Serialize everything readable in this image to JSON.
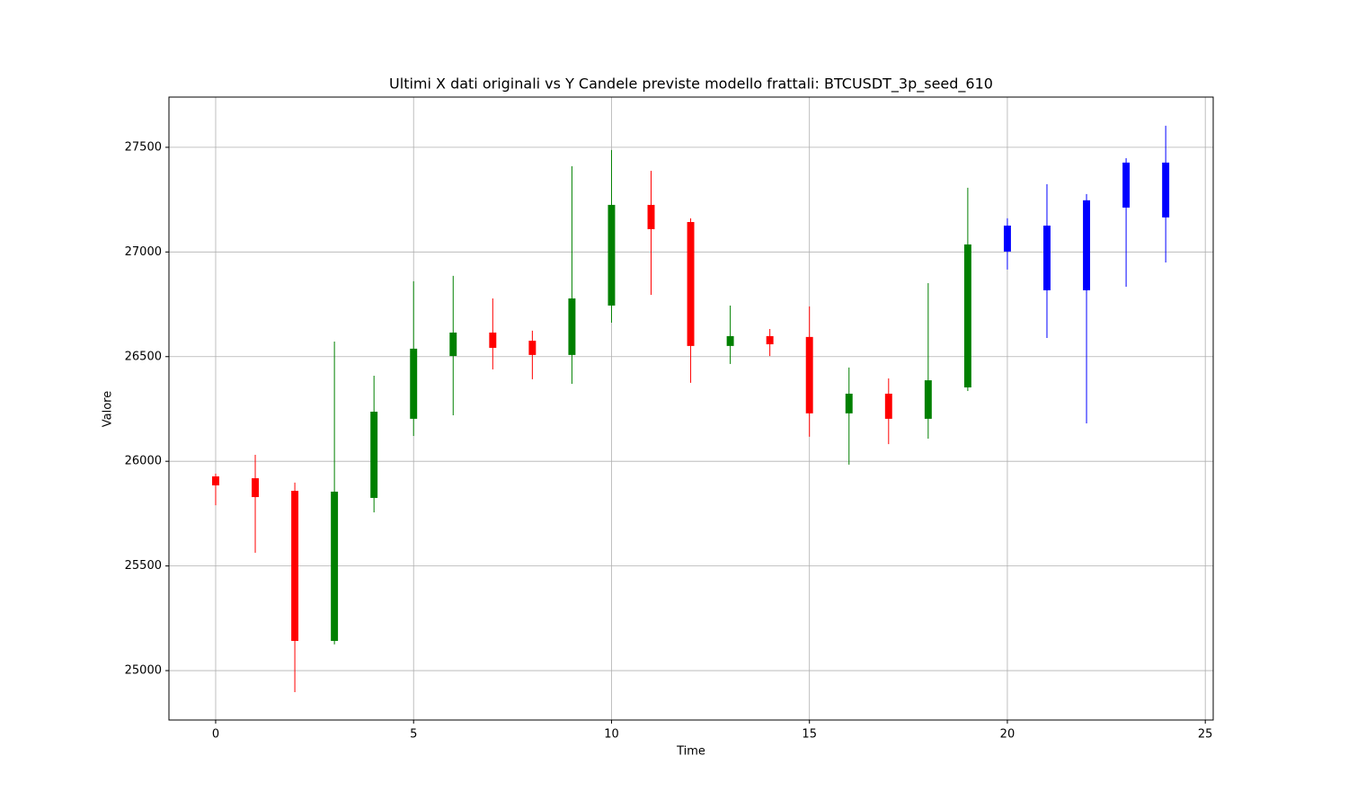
{
  "chart_data": {
    "type": "candlestick",
    "title": "Ultimi X dati originali vs Y Candele previste modello frattali: BTCUSDT_3p_seed_610",
    "x_label": "Time",
    "y_label": "Valore",
    "xlim": [
      -1.18,
      25.2
    ],
    "xticks": [
      0,
      5,
      10,
      15,
      20,
      25
    ],
    "ylim": [
      24764,
      27740
    ],
    "yticks": [
      25000,
      25500,
      26000,
      26500,
      27000,
      27500
    ],
    "grid": true,
    "series": [
      {
        "up_color": "green",
        "down_color": "red",
        "x": [
          0,
          1,
          2,
          3,
          4,
          5,
          6,
          7,
          8,
          9,
          10,
          11,
          12,
          13,
          14,
          15,
          16,
          17,
          18,
          19
        ],
        "open": [
          25928,
          25919,
          25859,
          25142,
          25825,
          26203,
          26503,
          26615,
          26576,
          26508,
          26744,
          27225,
          27143,
          26551,
          26598,
          26594,
          26229,
          26323,
          26203,
          26353
        ],
        "high": [
          25941,
          26031,
          25898,
          26572,
          26409,
          26860,
          26886,
          26778,
          26624,
          27410,
          27487,
          27388,
          27161,
          26744,
          26632,
          26740,
          26448,
          26396,
          26851,
          27307
        ],
        "low": [
          25790,
          25563,
          24897,
          25125,
          25756,
          26121,
          26220,
          26439,
          26392,
          26370,
          26662,
          26795,
          26375,
          26465,
          26503,
          26117,
          25984,
          26082,
          26108,
          26336
        ],
        "close": [
          25885,
          25829,
          25142,
          25855,
          26237,
          26538,
          26615,
          26542,
          26508,
          26778,
          27225,
          27109,
          26551,
          26598,
          26559,
          26229,
          26323,
          26203,
          26387,
          27036
        ]
      },
      {
        "color": "blue",
        "x": [
          20,
          21,
          22,
          23,
          24
        ],
        "open": [
          27002,
          26817,
          26817,
          27212,
          27165
        ],
        "high": [
          27161,
          27324,
          27277,
          27448,
          27603
        ],
        "low": [
          26916,
          26589,
          26181,
          26834,
          26950
        ],
        "close": [
          27126,
          27126,
          27247,
          27427,
          27427
        ]
      }
    ]
  }
}
